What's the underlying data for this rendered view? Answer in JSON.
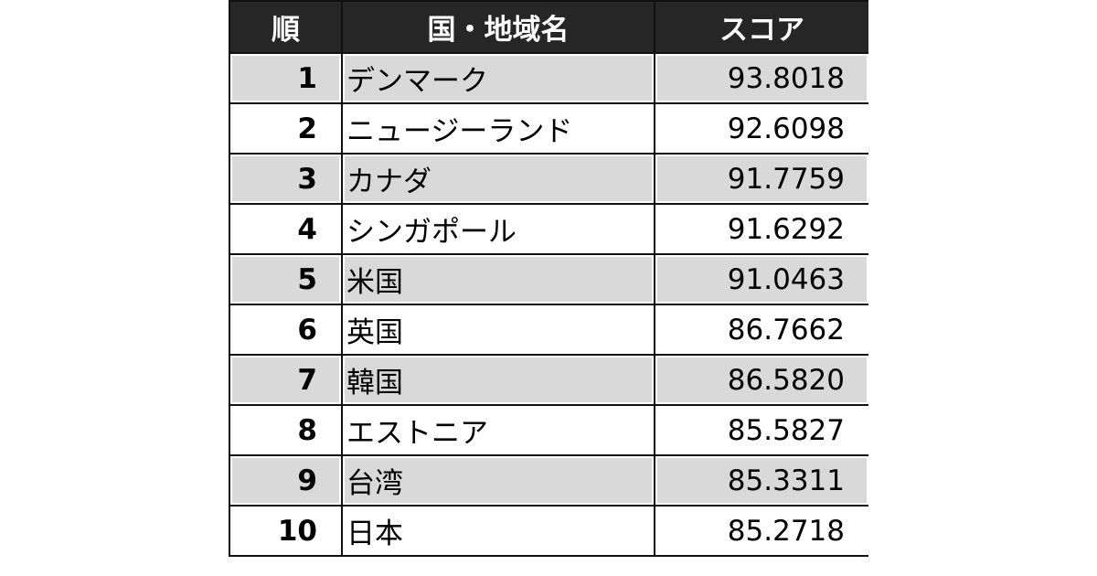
{
  "table": {
    "header": [
      "順",
      "国・地域名",
      "スコア"
    ],
    "rows": [
      [
        "1",
        "デンマーク",
        "93.8018"
      ],
      [
        "2",
        "ニュージーランド",
        "92.6098"
      ],
      [
        "3",
        "カナダ",
        "91.7759"
      ],
      [
        "4",
        "シンガポール",
        "91.6292"
      ],
      [
        "5",
        "米国",
        "91.0463"
      ],
      [
        "6",
        "英国",
        "86.7662"
      ],
      [
        "7",
        "韓国",
        "86.5820"
      ],
      [
        "8",
        "エストニア",
        "85.5827"
      ],
      [
        "9",
        "台湾",
        "85.3311"
      ],
      [
        "10",
        "日本",
        "85.2718"
      ]
    ]
  }
}
